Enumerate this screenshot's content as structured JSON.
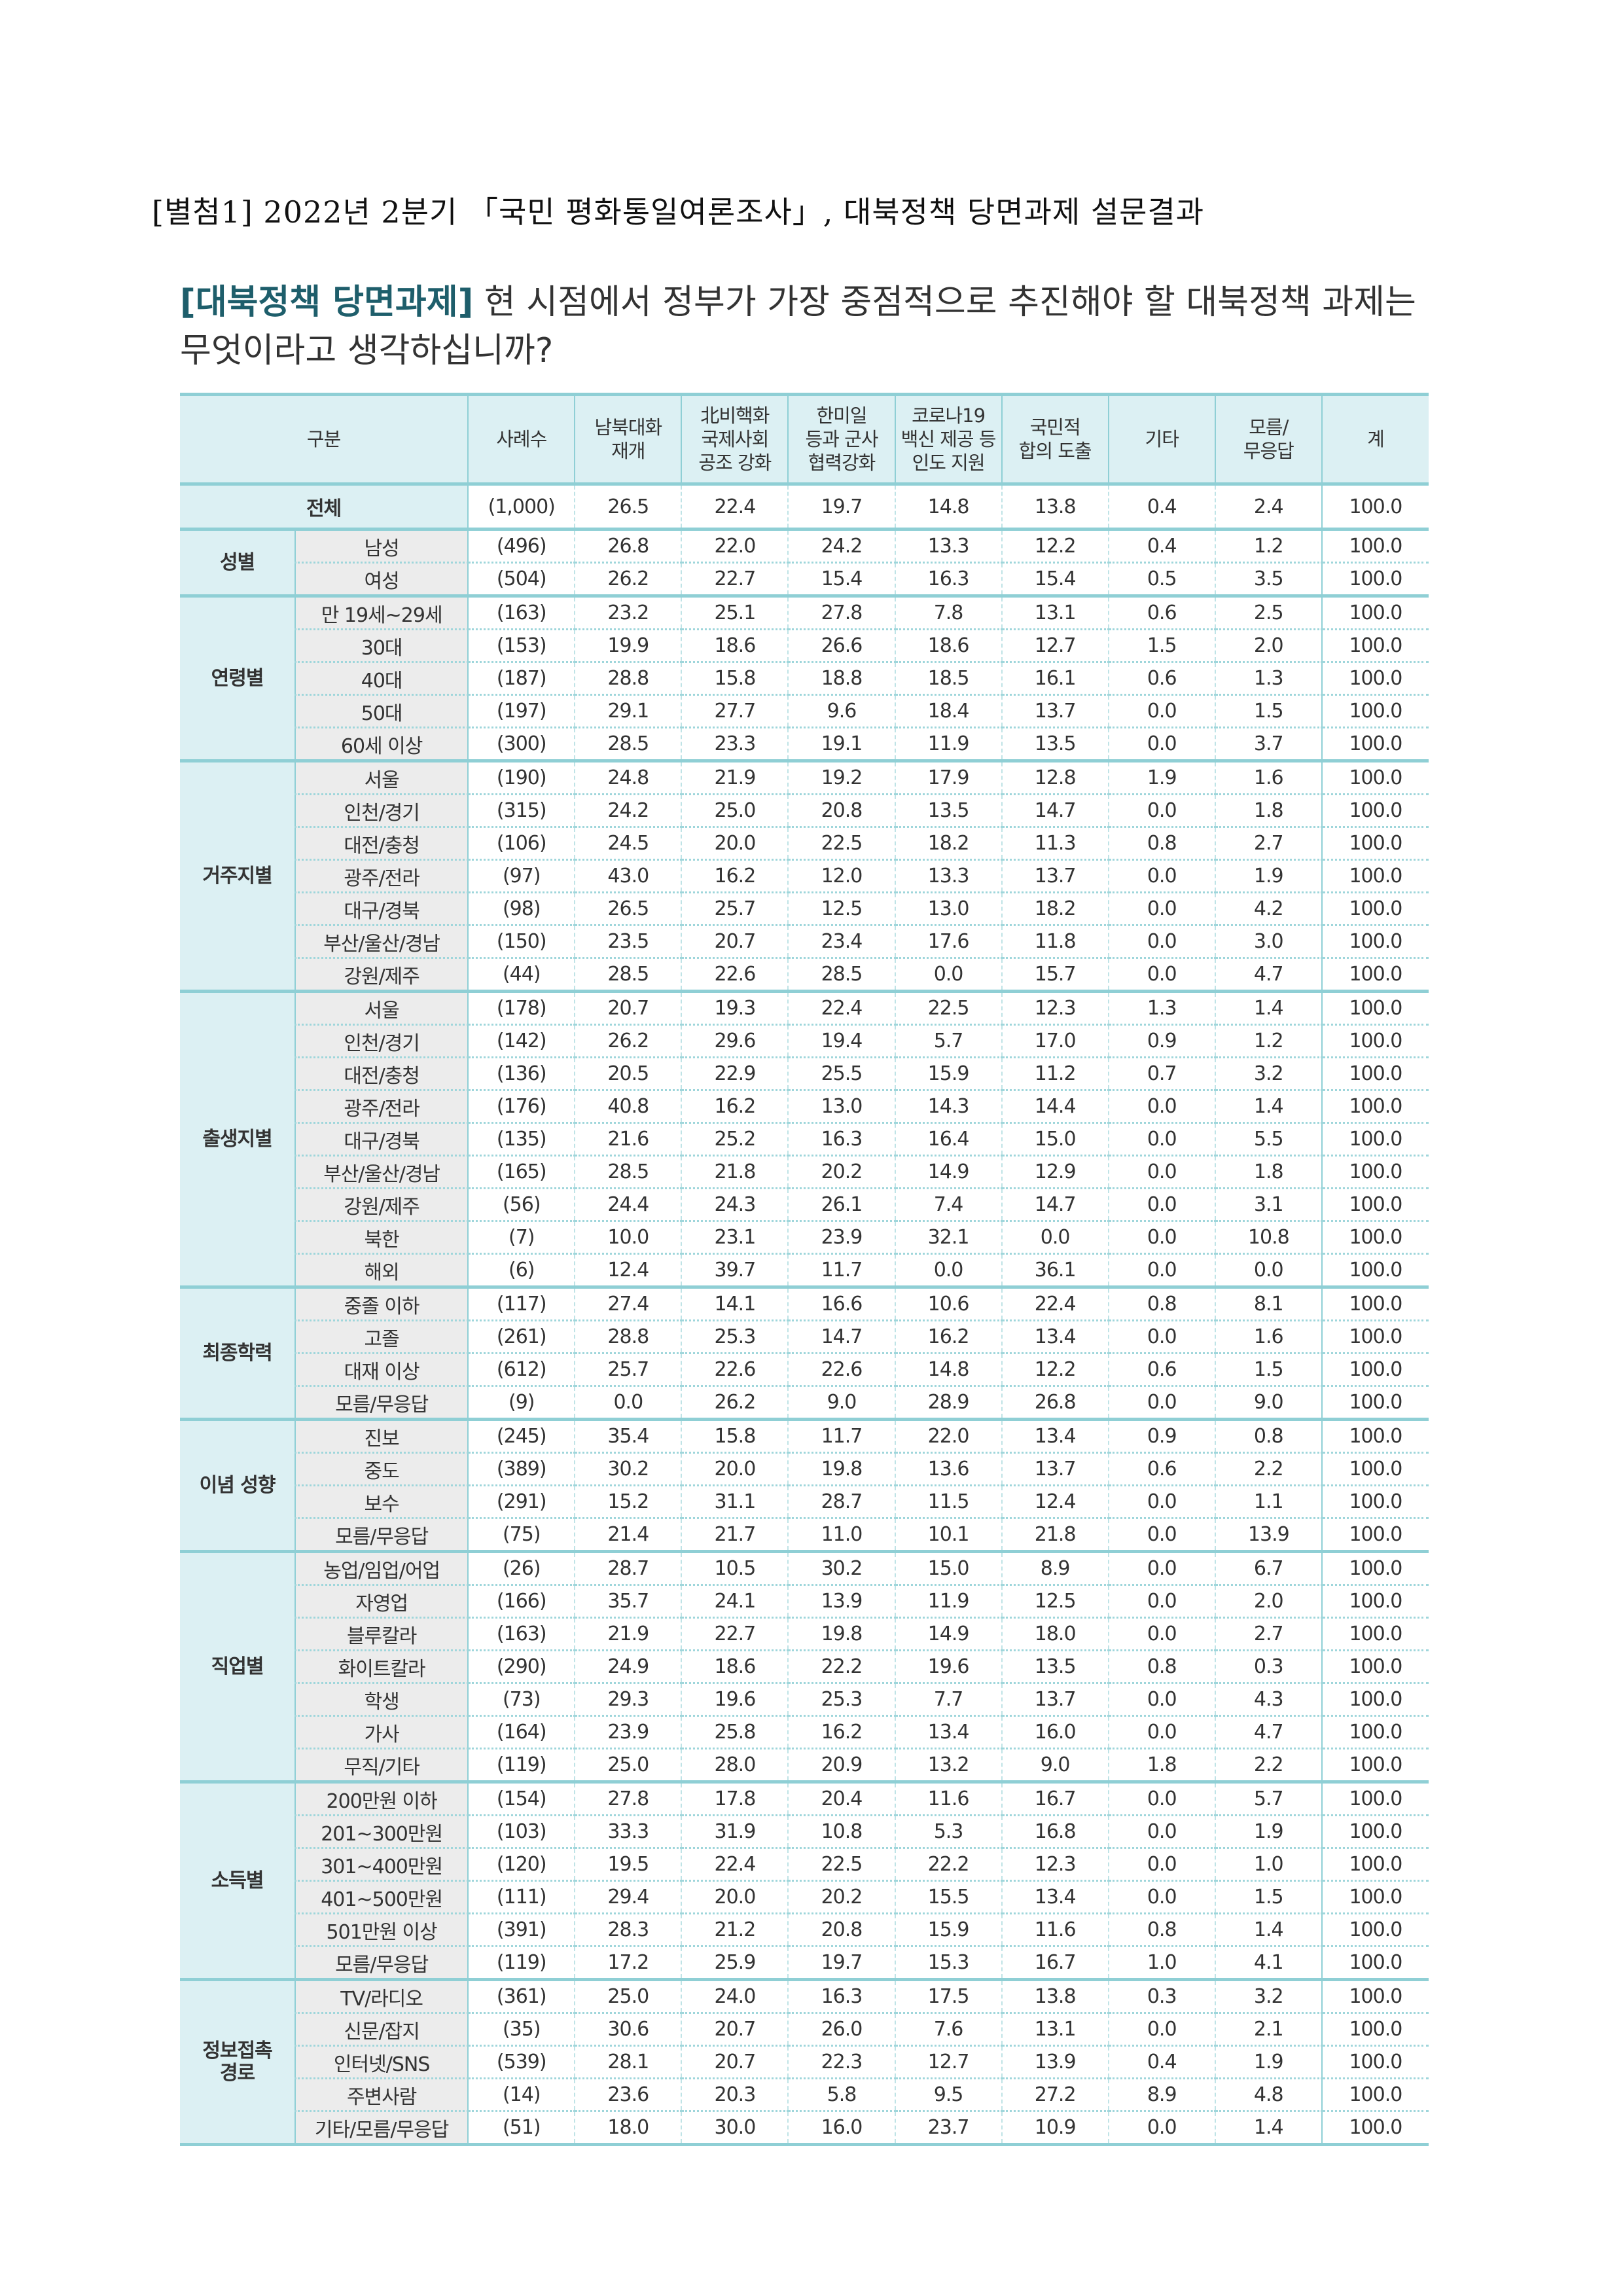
{
  "document_title": "[별첨1] 2022년 2분기 「국민 평화통일여론조사」, 대북정책 당면과제 설문결과",
  "question": {
    "tag": "[대북정책 당면과제]",
    "text": " 현 시점에서 정부가 가장 중점적으로 추진해야 할 대북정책 과제는 무엇이라고 생각하십니까?"
  },
  "colors": {
    "accent_teal": "#8fcfd5",
    "header_bg": "#dcf0f3",
    "tag_text": "#1e5e6b",
    "sublabel_bg": "#ececec"
  },
  "table": {
    "headers": [
      "구분",
      "사례수",
      "남북대화\n재개",
      "北비핵화\n국제사회\n공조 강화",
      "한미일\n등과 군사\n협력강화",
      "코로나19\n백신 제공 등\n인도 지원",
      "국민적\n합의 도출",
      "기타",
      "모름/\n무응답",
      "계"
    ],
    "total": {
      "label": "전체",
      "values": [
        "(1,000)",
        "26.5",
        "22.4",
        "19.7",
        "14.8",
        "13.8",
        "0.4",
        "2.4",
        "100.0"
      ]
    },
    "groups": [
      {
        "label": "성별",
        "rows": [
          {
            "label": "남성",
            "values": [
              "(496)",
              "26.8",
              "22.0",
              "24.2",
              "13.3",
              "12.2",
              "0.4",
              "1.2",
              "100.0"
            ]
          },
          {
            "label": "여성",
            "values": [
              "(504)",
              "26.2",
              "22.7",
              "15.4",
              "16.3",
              "15.4",
              "0.5",
              "3.5",
              "100.0"
            ]
          }
        ]
      },
      {
        "label": "연령별",
        "rows": [
          {
            "label": "만 19세~29세",
            "values": [
              "(163)",
              "23.2",
              "25.1",
              "27.8",
              "7.8",
              "13.1",
              "0.6",
              "2.5",
              "100.0"
            ]
          },
          {
            "label": "30대",
            "values": [
              "(153)",
              "19.9",
              "18.6",
              "26.6",
              "18.6",
              "12.7",
              "1.5",
              "2.0",
              "100.0"
            ]
          },
          {
            "label": "40대",
            "values": [
              "(187)",
              "28.8",
              "15.8",
              "18.8",
              "18.5",
              "16.1",
              "0.6",
              "1.3",
              "100.0"
            ]
          },
          {
            "label": "50대",
            "values": [
              "(197)",
              "29.1",
              "27.7",
              "9.6",
              "18.4",
              "13.7",
              "0.0",
              "1.5",
              "100.0"
            ]
          },
          {
            "label": "60세 이상",
            "values": [
              "(300)",
              "28.5",
              "23.3",
              "19.1",
              "11.9",
              "13.5",
              "0.0",
              "3.7",
              "100.0"
            ]
          }
        ]
      },
      {
        "label": "거주지별",
        "rows": [
          {
            "label": "서울",
            "values": [
              "(190)",
              "24.8",
              "21.9",
              "19.2",
              "17.9",
              "12.8",
              "1.9",
              "1.6",
              "100.0"
            ]
          },
          {
            "label": "인천/경기",
            "values": [
              "(315)",
              "24.2",
              "25.0",
              "20.8",
              "13.5",
              "14.7",
              "0.0",
              "1.8",
              "100.0"
            ]
          },
          {
            "label": "대전/충청",
            "values": [
              "(106)",
              "24.5",
              "20.0",
              "22.5",
              "18.2",
              "11.3",
              "0.8",
              "2.7",
              "100.0"
            ]
          },
          {
            "label": "광주/전라",
            "values": [
              "(97)",
              "43.0",
              "16.2",
              "12.0",
              "13.3",
              "13.7",
              "0.0",
              "1.9",
              "100.0"
            ]
          },
          {
            "label": "대구/경북",
            "values": [
              "(98)",
              "26.5",
              "25.7",
              "12.5",
              "13.0",
              "18.2",
              "0.0",
              "4.2",
              "100.0"
            ]
          },
          {
            "label": "부산/울산/경남",
            "values": [
              "(150)",
              "23.5",
              "20.7",
              "23.4",
              "17.6",
              "11.8",
              "0.0",
              "3.0",
              "100.0"
            ]
          },
          {
            "label": "강원/제주",
            "values": [
              "(44)",
              "28.5",
              "22.6",
              "28.5",
              "0.0",
              "15.7",
              "0.0",
              "4.7",
              "100.0"
            ]
          }
        ]
      },
      {
        "label": "출생지별",
        "rows": [
          {
            "label": "서울",
            "values": [
              "(178)",
              "20.7",
              "19.3",
              "22.4",
              "22.5",
              "12.3",
              "1.3",
              "1.4",
              "100.0"
            ]
          },
          {
            "label": "인천/경기",
            "values": [
              "(142)",
              "26.2",
              "29.6",
              "19.4",
              "5.7",
              "17.0",
              "0.9",
              "1.2",
              "100.0"
            ]
          },
          {
            "label": "대전/충청",
            "values": [
              "(136)",
              "20.5",
              "22.9",
              "25.5",
              "15.9",
              "11.2",
              "0.7",
              "3.2",
              "100.0"
            ]
          },
          {
            "label": "광주/전라",
            "values": [
              "(176)",
              "40.8",
              "16.2",
              "13.0",
              "14.3",
              "14.4",
              "0.0",
              "1.4",
              "100.0"
            ]
          },
          {
            "label": "대구/경북",
            "values": [
              "(135)",
              "21.6",
              "25.2",
              "16.3",
              "16.4",
              "15.0",
              "0.0",
              "5.5",
              "100.0"
            ]
          },
          {
            "label": "부산/울산/경남",
            "values": [
              "(165)",
              "28.5",
              "21.8",
              "20.2",
              "14.9",
              "12.9",
              "0.0",
              "1.8",
              "100.0"
            ]
          },
          {
            "label": "강원/제주",
            "values": [
              "(56)",
              "24.4",
              "24.3",
              "26.1",
              "7.4",
              "14.7",
              "0.0",
              "3.1",
              "100.0"
            ]
          },
          {
            "label": "북한",
            "values": [
              "(7)",
              "10.0",
              "23.1",
              "23.9",
              "32.1",
              "0.0",
              "0.0",
              "10.8",
              "100.0"
            ]
          },
          {
            "label": "해외",
            "values": [
              "(6)",
              "12.4",
              "39.7",
              "11.7",
              "0.0",
              "36.1",
              "0.0",
              "0.0",
              "100.0"
            ]
          }
        ]
      },
      {
        "label": "최종학력",
        "rows": [
          {
            "label": "중졸 이하",
            "values": [
              "(117)",
              "27.4",
              "14.1",
              "16.6",
              "10.6",
              "22.4",
              "0.8",
              "8.1",
              "100.0"
            ]
          },
          {
            "label": "고졸",
            "values": [
              "(261)",
              "28.8",
              "25.3",
              "14.7",
              "16.2",
              "13.4",
              "0.0",
              "1.6",
              "100.0"
            ]
          },
          {
            "label": "대재 이상",
            "values": [
              "(612)",
              "25.7",
              "22.6",
              "22.6",
              "14.8",
              "12.2",
              "0.6",
              "1.5",
              "100.0"
            ]
          },
          {
            "label": "모름/무응답",
            "values": [
              "(9)",
              "0.0",
              "26.2",
              "9.0",
              "28.9",
              "26.8",
              "0.0",
              "9.0",
              "100.0"
            ]
          }
        ]
      },
      {
        "label": "이념 성향",
        "rows": [
          {
            "label": "진보",
            "values": [
              "(245)",
              "35.4",
              "15.8",
              "11.7",
              "22.0",
              "13.4",
              "0.9",
              "0.8",
              "100.0"
            ]
          },
          {
            "label": "중도",
            "values": [
              "(389)",
              "30.2",
              "20.0",
              "19.8",
              "13.6",
              "13.7",
              "0.6",
              "2.2",
              "100.0"
            ]
          },
          {
            "label": "보수",
            "values": [
              "(291)",
              "15.2",
              "31.1",
              "28.7",
              "11.5",
              "12.4",
              "0.0",
              "1.1",
              "100.0"
            ]
          },
          {
            "label": "모름/무응답",
            "values": [
              "(75)",
              "21.4",
              "21.7",
              "11.0",
              "10.1",
              "21.8",
              "0.0",
              "13.9",
              "100.0"
            ]
          }
        ]
      },
      {
        "label": "직업별",
        "rows": [
          {
            "label": "농업/임업/어업",
            "values": [
              "(26)",
              "28.7",
              "10.5",
              "30.2",
              "15.0",
              "8.9",
              "0.0",
              "6.7",
              "100.0"
            ]
          },
          {
            "label": "자영업",
            "values": [
              "(166)",
              "35.7",
              "24.1",
              "13.9",
              "11.9",
              "12.5",
              "0.0",
              "2.0",
              "100.0"
            ]
          },
          {
            "label": "블루칼라",
            "values": [
              "(163)",
              "21.9",
              "22.7",
              "19.8",
              "14.9",
              "18.0",
              "0.0",
              "2.7",
              "100.0"
            ]
          },
          {
            "label": "화이트칼라",
            "values": [
              "(290)",
              "24.9",
              "18.6",
              "22.2",
              "19.6",
              "13.5",
              "0.8",
              "0.3",
              "100.0"
            ]
          },
          {
            "label": "학생",
            "values": [
              "(73)",
              "29.3",
              "19.6",
              "25.3",
              "7.7",
              "13.7",
              "0.0",
              "4.3",
              "100.0"
            ]
          },
          {
            "label": "가사",
            "values": [
              "(164)",
              "23.9",
              "25.8",
              "16.2",
              "13.4",
              "16.0",
              "0.0",
              "4.7",
              "100.0"
            ]
          },
          {
            "label": "무직/기타",
            "values": [
              "(119)",
              "25.0",
              "28.0",
              "20.9",
              "13.2",
              "9.0",
              "1.8",
              "2.2",
              "100.0"
            ]
          }
        ]
      },
      {
        "label": "소득별",
        "rows": [
          {
            "label": "200만원 이하",
            "values": [
              "(154)",
              "27.8",
              "17.8",
              "20.4",
              "11.6",
              "16.7",
              "0.0",
              "5.7",
              "100.0"
            ]
          },
          {
            "label": "201~300만원",
            "values": [
              "(103)",
              "33.3",
              "31.9",
              "10.8",
              "5.3",
              "16.8",
              "0.0",
              "1.9",
              "100.0"
            ]
          },
          {
            "label": "301~400만원",
            "values": [
              "(120)",
              "19.5",
              "22.4",
              "22.5",
              "22.2",
              "12.3",
              "0.0",
              "1.0",
              "100.0"
            ]
          },
          {
            "label": "401~500만원",
            "values": [
              "(111)",
              "29.4",
              "20.0",
              "20.2",
              "15.5",
              "13.4",
              "0.0",
              "1.5",
              "100.0"
            ]
          },
          {
            "label": "501만원 이상",
            "values": [
              "(391)",
              "28.3",
              "21.2",
              "20.8",
              "15.9",
              "11.6",
              "0.8",
              "1.4",
              "100.0"
            ]
          },
          {
            "label": "모름/무응답",
            "values": [
              "(119)",
              "17.2",
              "25.9",
              "19.7",
              "15.3",
              "16.7",
              "1.0",
              "4.1",
              "100.0"
            ]
          }
        ]
      },
      {
        "label": "정보접촉\n경로",
        "rows": [
          {
            "label": "TV/라디오",
            "values": [
              "(361)",
              "25.0",
              "24.0",
              "16.3",
              "17.5",
              "13.8",
              "0.3",
              "3.2",
              "100.0"
            ]
          },
          {
            "label": "신문/잡지",
            "values": [
              "(35)",
              "30.6",
              "20.7",
              "26.0",
              "7.6",
              "13.1",
              "0.0",
              "2.1",
              "100.0"
            ]
          },
          {
            "label": "인터넷/SNS",
            "values": [
              "(539)",
              "28.1",
              "20.7",
              "22.3",
              "12.7",
              "13.9",
              "0.4",
              "1.9",
              "100.0"
            ]
          },
          {
            "label": "주변사람",
            "values": [
              "(14)",
              "23.6",
              "20.3",
              "5.8",
              "9.5",
              "27.2",
              "8.9",
              "4.8",
              "100.0"
            ]
          },
          {
            "label": "기타/모름/무응답",
            "values": [
              "(51)",
              "18.0",
              "30.0",
              "16.0",
              "23.7",
              "10.9",
              "0.0",
              "1.4",
              "100.0"
            ]
          }
        ]
      }
    ]
  }
}
